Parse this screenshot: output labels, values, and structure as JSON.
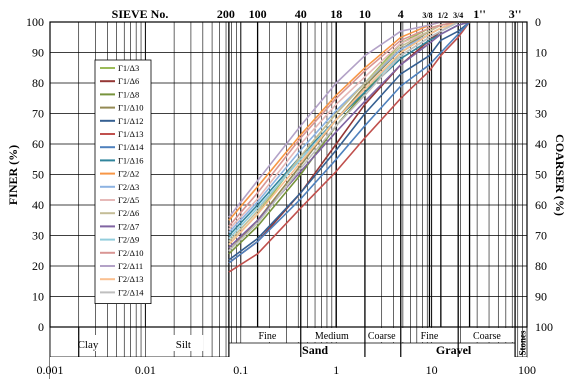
{
  "chart_data": {
    "type": "line",
    "x_scale": "log",
    "xlim": [
      0.001,
      100
    ],
    "ylim": [
      0,
      100
    ],
    "ylabel": "FINER (%)",
    "y2label": "COARSER (%)",
    "y2lim": [
      100,
      0
    ],
    "grid": true,
    "legend_position": "upper-left",
    "x_ticks": [
      "0.001",
      "0.01",
      "0.1",
      "1",
      "10",
      "100"
    ],
    "y_ticks": [
      "0",
      "10",
      "20",
      "30",
      "40",
      "50",
      "60",
      "70",
      "80",
      "90",
      "100"
    ],
    "y2_ticks": [
      "0",
      "10",
      "20",
      "30",
      "40",
      "50",
      "60",
      "70",
      "80",
      "90",
      "100"
    ],
    "sieve_title": "SIEVE No.",
    "sieves": [
      {
        "label": "200",
        "size": 0.075
      },
      {
        "label": "100",
        "size": 0.15
      },
      {
        "label": "40",
        "size": 0.425
      },
      {
        "label": "18",
        "size": 1.0
      },
      {
        "label": "10",
        "size": 2.0
      },
      {
        "label": "4",
        "size": 4.75
      },
      {
        "label": "3/8",
        "size": 9.5
      },
      {
        "label": "1/2",
        "size": 12.5
      },
      {
        "label": "3/4",
        "size": 19.0
      },
      {
        "label": "1''",
        "size": 25.0
      },
      {
        "label": "3''",
        "size": 75.0
      }
    ],
    "classification": {
      "clay": "Clay",
      "silt": "Silt",
      "sand": "Sand",
      "gravel": "Gravel",
      "stones": "Stones",
      "sand_fine": "Fine",
      "sand_medium": "Medium",
      "sand_coarse": "Coarse",
      "gravel_fine": "Fine",
      "gravel_coarse": "Coarse"
    },
    "x": [
      0.075,
      0.15,
      0.425,
      1.0,
      2.0,
      4.75,
      9.5,
      12.5,
      19.0,
      25.0
    ],
    "series": [
      {
        "name": "Γ1/Δ3",
        "color": "#9bbb59",
        "values": [
          27,
          37,
          56,
          70,
          80,
          93,
          98,
          99,
          100,
          100
        ]
      },
      {
        "name": "Γ1/Δ6",
        "color": "#953735",
        "values": [
          21,
          28,
          44,
          60,
          73,
          86,
          94,
          97,
          100,
          100
        ]
      },
      {
        "name": "Γ1/Δ8",
        "color": "#77933c",
        "values": [
          24,
          33,
          50,
          66,
          77,
          90,
          96,
          98,
          100,
          100
        ]
      },
      {
        "name": "Γ1/Δ10",
        "color": "#948a54",
        "values": [
          25,
          35,
          53,
          68,
          79,
          91,
          97,
          99,
          100,
          100
        ]
      },
      {
        "name": "Γ1/Δ12",
        "color": "#366092",
        "values": [
          22,
          29,
          44,
          58,
          70,
          83,
          89,
          94,
          97,
          100
        ]
      },
      {
        "name": "Γ1/Δ13",
        "color": "#c0504d",
        "values": [
          18,
          24,
          39,
          51,
          62,
          75,
          84,
          89,
          95,
          100
        ]
      },
      {
        "name": "Γ1/Δ14",
        "color": "#4f81bd",
        "values": [
          21,
          28,
          42,
          55,
          66,
          79,
          86,
          90,
          96,
          100
        ]
      },
      {
        "name": "Γ1/Δ16",
        "color": "#31859c",
        "values": [
          30,
          40,
          56,
          68,
          77,
          88,
          94,
          96,
          99,
          100
        ]
      },
      {
        "name": "Γ2/Δ2",
        "color": "#f79646",
        "values": [
          35,
          46,
          63,
          76,
          85,
          95,
          99,
          100,
          100,
          100
        ]
      },
      {
        "name": "Γ2/Δ3",
        "color": "#8db3e2",
        "values": [
          31,
          41,
          58,
          71,
          80,
          91,
          96,
          98,
          100,
          100
        ]
      },
      {
        "name": "Γ2/Δ5",
        "color": "#e6b9b8",
        "values": [
          32,
          42,
          60,
          73,
          82,
          93,
          97,
          99,
          100,
          100
        ]
      },
      {
        "name": "Γ2/Δ6",
        "color": "#c4bd97",
        "values": [
          28,
          38,
          56,
          70,
          80,
          92,
          97,
          99,
          100,
          100
        ]
      },
      {
        "name": "Γ2/Δ7",
        "color": "#8064a2",
        "values": [
          26,
          35,
          51,
          64,
          74,
          86,
          93,
          96,
          99,
          100
        ]
      },
      {
        "name": "Γ2/Δ9",
        "color": "#92cddc",
        "values": [
          29,
          39,
          55,
          68,
          78,
          89,
          95,
          97,
          100,
          100
        ]
      },
      {
        "name": "Γ2/Δ10",
        "color": "#d99694",
        "values": [
          33,
          44,
          62,
          75,
          84,
          94,
          98,
          99,
          100,
          100
        ]
      },
      {
        "name": "Γ2/Δ11",
        "color": "#b3a2c7",
        "values": [
          36,
          48,
          66,
          80,
          89,
          97,
          99,
          100,
          100,
          100
        ]
      },
      {
        "name": "Γ2/Δ13",
        "color": "#fac090",
        "values": [
          27,
          37,
          54,
          68,
          78,
          90,
          96,
          98,
          100,
          100
        ]
      },
      {
        "name": "Γ2/Δ14",
        "color": "#bfbfbf",
        "values": [
          25,
          34,
          52,
          66,
          76,
          89,
          95,
          97,
          100,
          100
        ]
      }
    ]
  }
}
